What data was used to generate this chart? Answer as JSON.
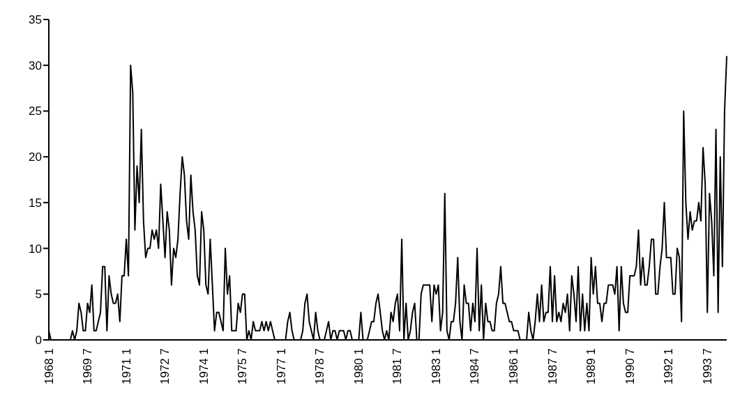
{
  "chart_data": {
    "type": "line",
    "categories": [
      "1968 1",
      null,
      null,
      null,
      null,
      null,
      null,
      null,
      null,
      null,
      null,
      null,
      null,
      null,
      null,
      null,
      null,
      null,
      "1969 7",
      null,
      null,
      null,
      null,
      null,
      null,
      null,
      null,
      null,
      null,
      null,
      null,
      null,
      null,
      null,
      null,
      null,
      "1971 1",
      null,
      null,
      null,
      null,
      null,
      null,
      null,
      null,
      null,
      null,
      null,
      null,
      null,
      null,
      null,
      null,
      null,
      "1972 7",
      null,
      null,
      null,
      null,
      null,
      null,
      null,
      null,
      null,
      null,
      null,
      null,
      null,
      null,
      null,
      null,
      null,
      "1974 1",
      null,
      null,
      null,
      null,
      null,
      null,
      null,
      null,
      null,
      null,
      null,
      null,
      null,
      null,
      null,
      null,
      null,
      "1975 7",
      null,
      null,
      null,
      null,
      null,
      null,
      null,
      null,
      null,
      null,
      null,
      null,
      null,
      null,
      null,
      null,
      null,
      "1977 1",
      null,
      null,
      null,
      null,
      null,
      null,
      null,
      null,
      null,
      null,
      null,
      null,
      null,
      null,
      null,
      null,
      null,
      "1978 7",
      null,
      null,
      null,
      null,
      null,
      null,
      null,
      null,
      null,
      null,
      null,
      null,
      null,
      null,
      null,
      null,
      null,
      "1980 1",
      null,
      null,
      null,
      null,
      null,
      null,
      null,
      null,
      null,
      null,
      null,
      null,
      null,
      null,
      null,
      null,
      null,
      "1981 7",
      null,
      null,
      null,
      null,
      null,
      null,
      null,
      null,
      null,
      null,
      null,
      null,
      null,
      null,
      null,
      null,
      null,
      "1983 1",
      null,
      null,
      null,
      null,
      null,
      null,
      null,
      null,
      null,
      null,
      null,
      null,
      null,
      null,
      null,
      null,
      null,
      "1984 7",
      null,
      null,
      null,
      null,
      null,
      null,
      null,
      null,
      null,
      null,
      null,
      null,
      null,
      null,
      null,
      null,
      null,
      "1986 1",
      null,
      null,
      null,
      null,
      null,
      null,
      null,
      null,
      null,
      null,
      null,
      null,
      null,
      null,
      null,
      null,
      null,
      "1987 7",
      null,
      null,
      null,
      null,
      null,
      null,
      null,
      null,
      null,
      null,
      null,
      null,
      null,
      null,
      null,
      null,
      null,
      "1989 1",
      null,
      null,
      null,
      null,
      null,
      null,
      null,
      null,
      null,
      null,
      null,
      null,
      null,
      null,
      null,
      null,
      null,
      "1990 7",
      null,
      null,
      null,
      null,
      null,
      null,
      null,
      null,
      null,
      null,
      null,
      null,
      null,
      null,
      null,
      null,
      null,
      "1992 1",
      null,
      null,
      null,
      null,
      null,
      null,
      null,
      null,
      null,
      null,
      null,
      null,
      null,
      null,
      null,
      null,
      null,
      "1993 7",
      null,
      null,
      null,
      null,
      null,
      null,
      null,
      null,
      null
    ],
    "series": [
      {
        "color": "#000000",
        "values": [
          1,
          0,
          0,
          0,
          0,
          0,
          0,
          0,
          0,
          0,
          0,
          1,
          0,
          1,
          4,
          3,
          1,
          1,
          4,
          3,
          6,
          1,
          1,
          2,
          3,
          8,
          8,
          1,
          7,
          5,
          4,
          4,
          5,
          2,
          7,
          7,
          11,
          7,
          30,
          27,
          12,
          19,
          15,
          23,
          13,
          9,
          10,
          10,
          12,
          11,
          12,
          10,
          17,
          13,
          9,
          14,
          12,
          6,
          10,
          9,
          11,
          16,
          20,
          18,
          13,
          11,
          18,
          14,
          12,
          7,
          6,
          14,
          12,
          6,
          5,
          11,
          6,
          1,
          3,
          3,
          2,
          1,
          10,
          5,
          7,
          1,
          1,
          1,
          4,
          3,
          5,
          5,
          0,
          1,
          0,
          2,
          1,
          1,
          1,
          2,
          1,
          2,
          1,
          2,
          1,
          0,
          0,
          0,
          0,
          0,
          0,
          2,
          3,
          1,
          0,
          0,
          0,
          0,
          1,
          4,
          5,
          2,
          1,
          0,
          3,
          1,
          0,
          0,
          0,
          1,
          2,
          0,
          1,
          1,
          0,
          1,
          1,
          1,
          0,
          1,
          1,
          0,
          0,
          0,
          0,
          3,
          0,
          0,
          0,
          1,
          2,
          2,
          4,
          5,
          3,
          1,
          0,
          1,
          0,
          3,
          2,
          4,
          5,
          1,
          11,
          0,
          4,
          0,
          1,
          3,
          4,
          0,
          0,
          5,
          6,
          6,
          6,
          6,
          2,
          6,
          5,
          6,
          1,
          3,
          16,
          1,
          0,
          2,
          2,
          4,
          9,
          2,
          0,
          6,
          4,
          4,
          1,
          4,
          2,
          10,
          1,
          6,
          0,
          4,
          2,
          2,
          1,
          1,
          4,
          5,
          8,
          4,
          4,
          3,
          2,
          2,
          1,
          1,
          1,
          0,
          0,
          0,
          0,
          3,
          1,
          0,
          2,
          5,
          2,
          6,
          2,
          3,
          3,
          8,
          2,
          7,
          2,
          3,
          2,
          4,
          3,
          5,
          1,
          7,
          5,
          2,
          8,
          1,
          5,
          1,
          4,
          1,
          9,
          5,
          8,
          4,
          4,
          2,
          4,
          4,
          6,
          6,
          6,
          5,
          8,
          1,
          8,
          4,
          3,
          3,
          7,
          7,
          7,
          8,
          12,
          6,
          9,
          6,
          6,
          8,
          11,
          11,
          5,
          5,
          8,
          10,
          15,
          9,
          9,
          9,
          5,
          5,
          10,
          9,
          2,
          25,
          15,
          11,
          14,
          12,
          13,
          13,
          15,
          13,
          21,
          17,
          3,
          16,
          13,
          7,
          23,
          3,
          20,
          8,
          25,
          31
        ]
      }
    ],
    "ylim": [
      0,
      35
    ],
    "yticks": [
      0,
      5,
      10,
      15,
      20,
      25,
      30,
      35
    ]
  }
}
